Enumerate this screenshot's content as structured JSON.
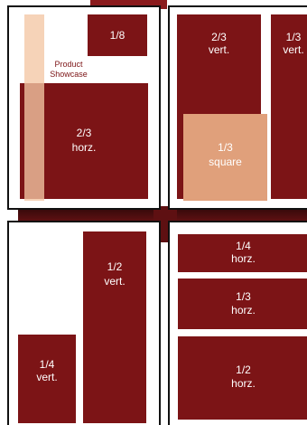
{
  "diagram": {
    "top_left": {
      "eighth": "1/8",
      "product_line1": "Product",
      "product_line2": "Showcase",
      "horz_two_thirds_line1": "2/3",
      "horz_two_thirds_line2": "horz."
    },
    "top_right": {
      "vert_two_thirds_line1": "2/3",
      "vert_two_thirds_line2": "vert.",
      "vert_one_third_line1": "1/3",
      "vert_one_third_line2": "vert.",
      "square_line1": "1/3",
      "square_line2": "square"
    },
    "bottom_left": {
      "half_vert_line1": "1/2",
      "half_vert_line2": "vert.",
      "quarter_vert_line1": "1/4",
      "quarter_vert_line2": "vert."
    },
    "bottom_right": {
      "quarter_horz_line1": "1/4",
      "quarter_horz_line2": "horz.",
      "third_horz_line1": "1/3",
      "third_horz_line2": "horz.",
      "half_horz_line1": "1/2",
      "half_horz_line2": "horz."
    }
  },
  "colors": {
    "ad_red": "#7c1416",
    "ad_peach": "#f3c7a4",
    "square_tan": "#e0a07b",
    "frame": "#111111"
  }
}
